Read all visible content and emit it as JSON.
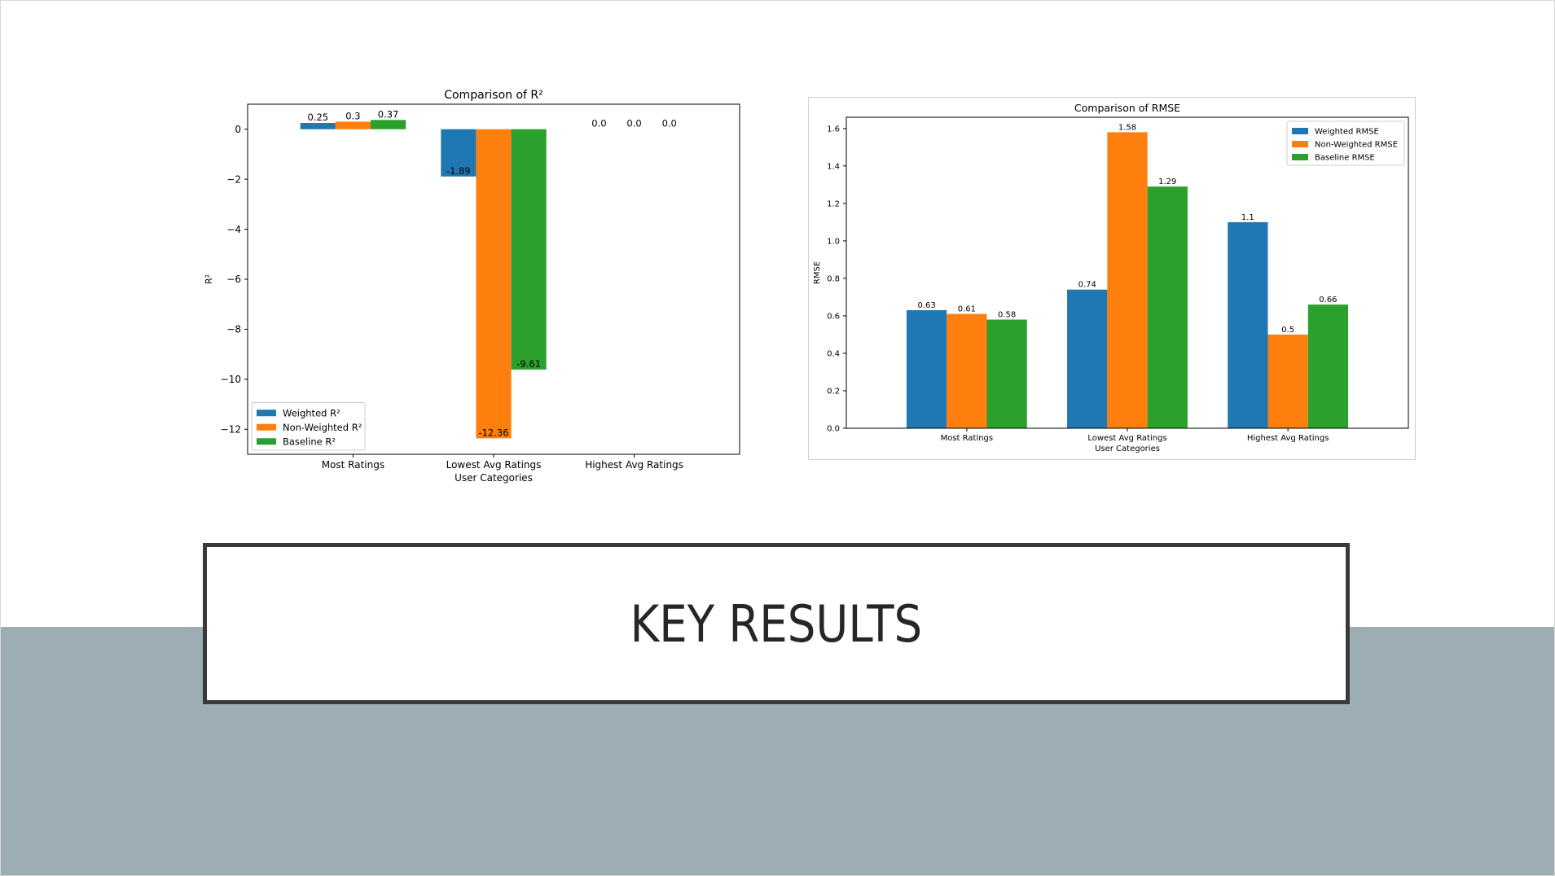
{
  "slide": {
    "title": "KEY RESULTS",
    "colors": {
      "band": "#9caeb4",
      "title_border": "#3a3a3a"
    }
  },
  "chart_data": [
    {
      "type": "bar",
      "title": "Comparison of R²",
      "xlabel": "User Categories",
      "ylabel": "R²",
      "categories": [
        "Most Ratings",
        "Lowest Avg Ratings",
        "Highest Avg Ratings"
      ],
      "series": [
        {
          "name": "Weighted R²",
          "color": "#1f77b4",
          "values": [
            0.25,
            -1.89,
            0.0
          ],
          "labels": [
            "0.25",
            "-1.89",
            "0.0"
          ]
        },
        {
          "name": "Non-Weighted R²",
          "color": "#ff7f0e",
          "values": [
            0.3,
            -12.36,
            0.0
          ],
          "labels": [
            "0.3",
            "-12.36",
            "0.0"
          ]
        },
        {
          "name": "Baseline R²",
          "color": "#2ca02c",
          "values": [
            0.37,
            -9.61,
            0.0
          ],
          "labels": [
            "0.37",
            "-9.61",
            "0.0"
          ]
        }
      ],
      "ylim": [
        -13.0,
        1.0
      ],
      "yticks": [
        0,
        -2,
        -4,
        -6,
        -8,
        -10,
        -12
      ],
      "ytick_labels": [
        "0",
        "−2",
        "−4",
        "−6",
        "−8",
        "−10",
        "−12"
      ],
      "legend": "lower-left",
      "grid": false
    },
    {
      "type": "bar",
      "title": "Comparison of RMSE",
      "xlabel": "User Categories",
      "ylabel": "RMSE",
      "categories": [
        "Most Ratings",
        "Lowest Avg Ratings",
        "Highest Avg Ratings"
      ],
      "series": [
        {
          "name": "Weighted RMSE",
          "color": "#1f77b4",
          "values": [
            0.63,
            0.74,
            1.1
          ],
          "labels": [
            "0.63",
            "0.74",
            "1.1"
          ]
        },
        {
          "name": "Non-Weighted RMSE",
          "color": "#ff7f0e",
          "values": [
            0.61,
            1.58,
            0.5
          ],
          "labels": [
            "0.61",
            "1.58",
            "0.5"
          ]
        },
        {
          "name": "Baseline RMSE",
          "color": "#2ca02c",
          "values": [
            0.58,
            1.29,
            0.66
          ],
          "labels": [
            "0.58",
            "1.29",
            "0.66"
          ]
        }
      ],
      "ylim": [
        0.0,
        1.66
      ],
      "yticks": [
        0.0,
        0.2,
        0.4,
        0.6,
        0.8,
        1.0,
        1.2,
        1.4,
        1.6
      ],
      "ytick_labels": [
        "0.0",
        "0.2",
        "0.4",
        "0.6",
        "0.8",
        "1.0",
        "1.2",
        "1.4",
        "1.6"
      ],
      "legend": "upper-right",
      "grid": false
    }
  ]
}
